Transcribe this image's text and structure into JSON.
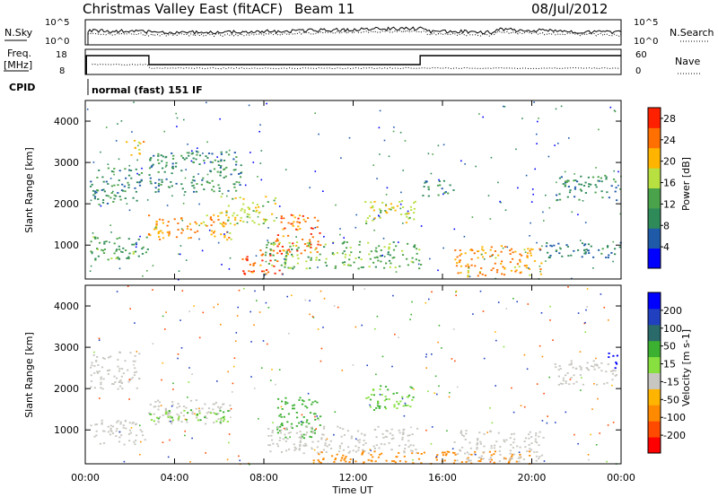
{
  "header": {
    "title": "Christmas Valley East (fitACF)",
    "beam": "Beam 11",
    "date": "08/Jul/2012"
  },
  "noise_panel": {
    "left_label": "N.Sky",
    "right_label": "N.Search",
    "ticks_left": [
      "10^5",
      "10^0"
    ],
    "ticks_right": [
      "10^5",
      "10^0"
    ]
  },
  "freq_panel": {
    "left_label_1": "Freq.",
    "left_label_2": "[MHz]",
    "right_label": "Nave",
    "ticks_left": [
      "18",
      "8"
    ],
    "ticks_right": [
      "60",
      "0"
    ]
  },
  "cpid": {
    "label": "CPID",
    "mode": "normal (fast) 151 IF"
  },
  "colors": {
    "grey_scatter": "#c8c6c0",
    "power_scale": [
      "#0000ff",
      "#1f5aa8",
      "#2f8a5a",
      "#4aa24a",
      "#b8e040",
      "#ffb400",
      "#ff7000",
      "#ff2000"
    ],
    "velocity_scale": [
      "#ff0000",
      "#ff4a00",
      "#ff8a00",
      "#ffb400",
      "#c8c6c0",
      "#88e040",
      "#3cb030",
      "#2a6a6a",
      "#2040c0",
      "#0000ff"
    ]
  },
  "chart_data": [
    {
      "type": "heatmap",
      "title": "Power",
      "ylabel": "Slant Range [km]",
      "xlabel": "",
      "xlim": [
        "00:00",
        "24:00"
      ],
      "ylim": [
        180,
        4500
      ],
      "y_ticks": [
        "1000",
        "2000",
        "3000",
        "4000"
      ],
      "colorbar": {
        "label": "Power [dB]",
        "ticks": [
          "4",
          "8",
          "12",
          "16",
          "20",
          "24",
          "28"
        ],
        "range": [
          0,
          30
        ]
      },
      "echo_regions": [
        {
          "t_start": 0.2,
          "t_end": 2.8,
          "r_start": 650,
          "r_end": 1250,
          "level": 12
        },
        {
          "t_start": 0.2,
          "t_end": 2.5,
          "r_start": 2000,
          "r_end": 2900,
          "level": 10
        },
        {
          "t_start": 1.8,
          "t_end": 2.6,
          "r_start": 3200,
          "r_end": 3600,
          "level": 22
        },
        {
          "t_start": 2.8,
          "t_end": 6.5,
          "r_start": 1150,
          "r_end": 1750,
          "level": 22
        },
        {
          "t_start": 2.8,
          "t_end": 7.0,
          "r_start": 2300,
          "r_end": 3300,
          "level": 10
        },
        {
          "t_start": 6.0,
          "t_end": 8.5,
          "r_start": 1500,
          "r_end": 2200,
          "level": 18
        },
        {
          "t_start": 7.0,
          "t_end": 8.8,
          "r_start": 300,
          "r_end": 900,
          "level": 26
        },
        {
          "t_start": 8.5,
          "t_end": 10.5,
          "r_start": 800,
          "r_end": 1800,
          "level": 24
        },
        {
          "t_start": 8.0,
          "t_end": 15.0,
          "r_start": 450,
          "r_end": 1100,
          "level": 14
        },
        {
          "t_start": 12.5,
          "t_end": 14.8,
          "r_start": 1500,
          "r_end": 2100,
          "level": 18
        },
        {
          "t_start": 15.0,
          "t_end": 16.5,
          "r_start": 2200,
          "r_end": 2600,
          "level": 10
        },
        {
          "t_start": 16.5,
          "t_end": 20.5,
          "r_start": 250,
          "r_end": 1000,
          "level": 22
        },
        {
          "t_start": 20.5,
          "t_end": 24.0,
          "r_start": 700,
          "r_end": 1100,
          "level": 8
        },
        {
          "t_start": 21.0,
          "t_end": 23.8,
          "r_start": 2100,
          "r_end": 2700,
          "level": 10
        }
      ]
    },
    {
      "type": "heatmap",
      "title": "Velocity",
      "ylabel": "Slant Range [km]",
      "xlabel": "Time UT",
      "xlim": [
        "00:00",
        "24:00"
      ],
      "ylim": [
        180,
        4500
      ],
      "x_ticks": [
        "00:00",
        "04:00",
        "08:00",
        "12:00",
        "16:00",
        "20:00",
        "00:00"
      ],
      "y_ticks": [
        "1000",
        "2000",
        "3000",
        "4000"
      ],
      "colorbar": {
        "label": "Velocity [m s-1]",
        "ticks": [
          "200",
          "100",
          "50",
          "15",
          "-15",
          "-50",
          "-100",
          "-200"
        ],
        "range": [
          -250,
          250
        ]
      },
      "echo_regions": [
        {
          "t_start": 0.2,
          "t_end": 2.8,
          "r_start": 650,
          "r_end": 1250,
          "level": 0
        },
        {
          "t_start": 0.2,
          "t_end": 2.5,
          "r_start": 2000,
          "r_end": 2900,
          "level": 0
        },
        {
          "t_start": 2.8,
          "t_end": 6.5,
          "r_start": 1150,
          "r_end": 1750,
          "level": 0
        },
        {
          "t_start": 2.8,
          "t_end": 6.5,
          "r_start": 1200,
          "r_end": 1500,
          "level": 30
        },
        {
          "t_start": 8.5,
          "t_end": 10.5,
          "r_start": 800,
          "r_end": 1800,
          "level": 60
        },
        {
          "t_start": 8.0,
          "t_end": 15.0,
          "r_start": 450,
          "r_end": 1100,
          "level": 0
        },
        {
          "t_start": 10.0,
          "t_end": 20.0,
          "r_start": 200,
          "r_end": 500,
          "level": -60
        },
        {
          "t_start": 12.5,
          "t_end": 14.8,
          "r_start": 1500,
          "r_end": 2100,
          "level": 30
        },
        {
          "t_start": 16.5,
          "t_end": 20.5,
          "r_start": 250,
          "r_end": 1000,
          "level": 0
        },
        {
          "t_start": 21.0,
          "t_end": 23.8,
          "r_start": 2100,
          "r_end": 2700,
          "level": 0
        },
        {
          "t_start": 23.3,
          "t_end": 23.8,
          "r_start": 2500,
          "r_end": 2900,
          "level": 200
        }
      ]
    }
  ]
}
